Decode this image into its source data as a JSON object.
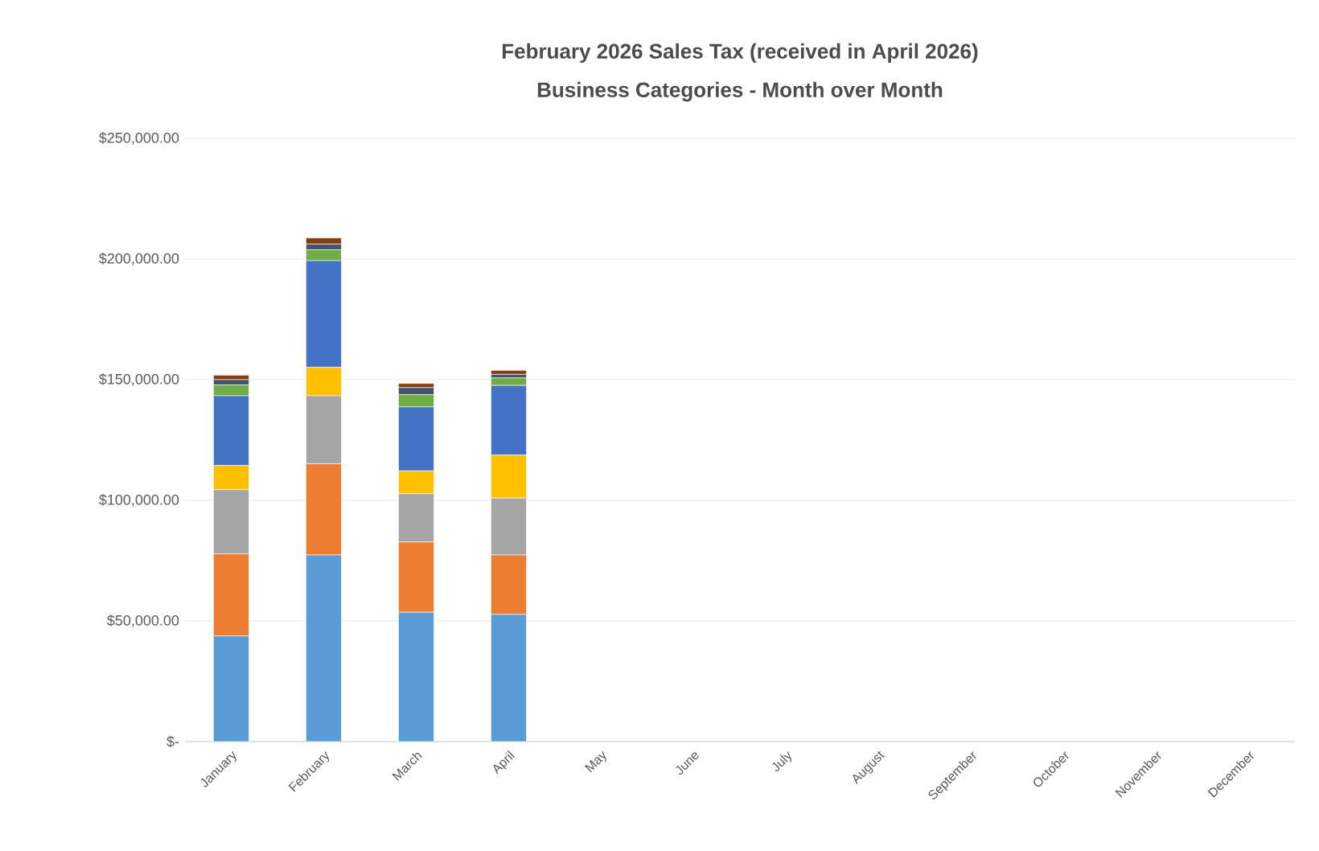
{
  "chart_data": {
    "type": "bar",
    "stacked": true,
    "title": "February 2026 Sales Tax (received in April 2026)",
    "subtitle": "Business Categories - Month over Month",
    "categories": [
      "January",
      "February",
      "March",
      "April",
      "May",
      "June",
      "July",
      "August",
      "September",
      "October",
      "November",
      "December"
    ],
    "series": [
      {
        "color": "#5b9bd5",
        "values": [
          43800,
          77300,
          53600,
          52700,
          null,
          null,
          null,
          null,
          null,
          null,
          null,
          null
        ]
      },
      {
        "color": "#ed7d31",
        "values": [
          34000,
          37800,
          29100,
          24600,
          null,
          null,
          null,
          null,
          null,
          null,
          null,
          null
        ]
      },
      {
        "color": "#a5a5a5",
        "values": [
          26600,
          28200,
          20000,
          23600,
          null,
          null,
          null,
          null,
          null,
          null,
          null,
          null
        ]
      },
      {
        "color": "#ffc000",
        "values": [
          10000,
          11800,
          9500,
          17800,
          null,
          null,
          null,
          null,
          null,
          null,
          null,
          null
        ]
      },
      {
        "color": "#4472c4",
        "values": [
          28900,
          44200,
          26500,
          28900,
          null,
          null,
          null,
          null,
          null,
          null,
          null,
          null
        ]
      },
      {
        "color": "#70ad47",
        "values": [
          4500,
          4500,
          5100,
          3100,
          null,
          null,
          null,
          null,
          null,
          null,
          null,
          null
        ]
      },
      {
        "color": "#44546a",
        "values": [
          2200,
          2400,
          2900,
          1500,
          null,
          null,
          null,
          null,
          null,
          null,
          null,
          null
        ]
      },
      {
        "color": "#843c0c",
        "values": [
          1800,
          2500,
          1700,
          1600,
          null,
          null,
          null,
          null,
          null,
          null,
          null,
          null
        ]
      }
    ],
    "ylim": [
      0,
      250000
    ],
    "yticks": [
      {
        "value": 0,
        "label": "$-"
      },
      {
        "value": 50000,
        "label": "$50,000.00"
      },
      {
        "value": 100000,
        "label": "$100,000.00"
      },
      {
        "value": 150000,
        "label": "$150,000.00"
      },
      {
        "value": 200000,
        "label": "$200,000.00"
      },
      {
        "value": 250000,
        "label": "$250,000.00"
      }
    ],
    "grid": "y"
  }
}
